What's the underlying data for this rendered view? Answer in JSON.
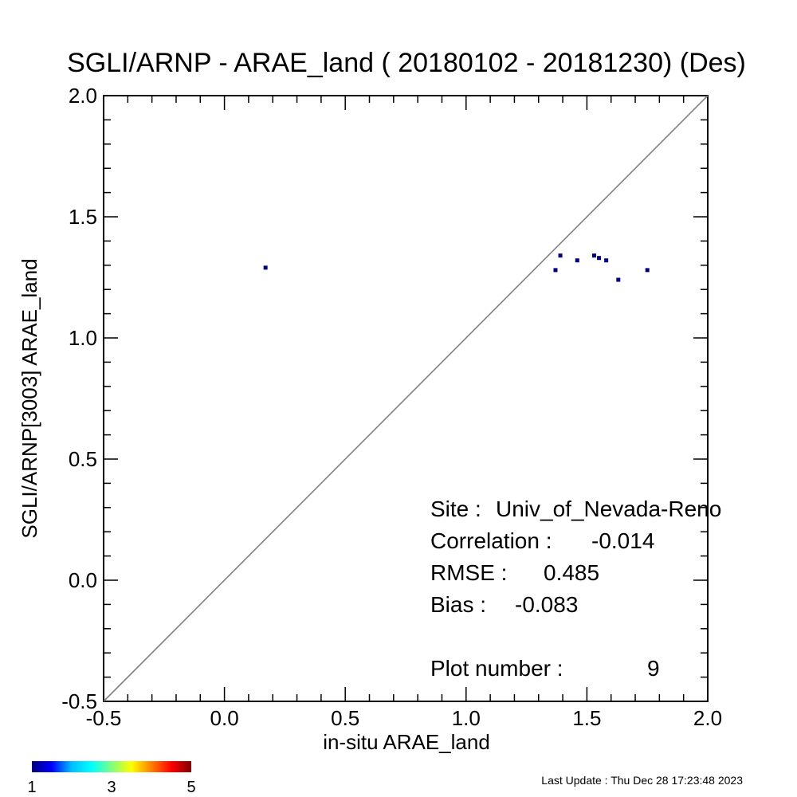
{
  "chart_data": {
    "type": "scatter",
    "title": "SGLI/ARNP - ARAE_land ( 20180102 - 20181230) (Des)",
    "xlabel": "in-situ ARAE_land",
    "ylabel": "SGLI/ARNP[3003]    ARAE_land",
    "xlim": [
      -0.5,
      2.0
    ],
    "ylim": [
      -0.5,
      2.0
    ],
    "major_ticks": [
      -0.5,
      0.0,
      0.5,
      1.0,
      1.5,
      2.0
    ],
    "tick_labels": [
      "-0.5",
      "0.0",
      "0.5",
      "1.0",
      "1.5",
      "2.0"
    ],
    "minor_tick_step": 0.1,
    "reference_line": "1:1",
    "grid": false,
    "point_color": "#00007f",
    "points": [
      {
        "x": 0.17,
        "y": 1.29
      },
      {
        "x": 1.37,
        "y": 1.28
      },
      {
        "x": 1.39,
        "y": 1.34
      },
      {
        "x": 1.46,
        "y": 1.32
      },
      {
        "x": 1.53,
        "y": 1.34
      },
      {
        "x": 1.55,
        "y": 1.33
      },
      {
        "x": 1.58,
        "y": 1.32
      },
      {
        "x": 1.63,
        "y": 1.24
      },
      {
        "x": 1.75,
        "y": 1.28
      }
    ],
    "stats": [
      {
        "label": "Site :",
        "value": "Univ_of_Nevada-Reno"
      },
      {
        "label": "Correlation :",
        "value": "-0.014"
      },
      {
        "label": "RMSE :",
        "value": "0.485"
      },
      {
        "label": "Bias :",
        "value": "-0.083"
      },
      {
        "label": "Plot number :",
        "value": "9"
      }
    ],
    "colorbar": {
      "tick_labels": [
        "1",
        "3",
        "5"
      ],
      "colors": [
        "#00007f",
        "#0000ff",
        "#00bfff",
        "#00ffff",
        "#7fff7f",
        "#ffff00",
        "#ff7f00",
        "#ff0000",
        "#7f0000"
      ]
    }
  },
  "footer": {
    "last_update": "Last Update : Thu Dec 28 17:23:48 2023"
  }
}
